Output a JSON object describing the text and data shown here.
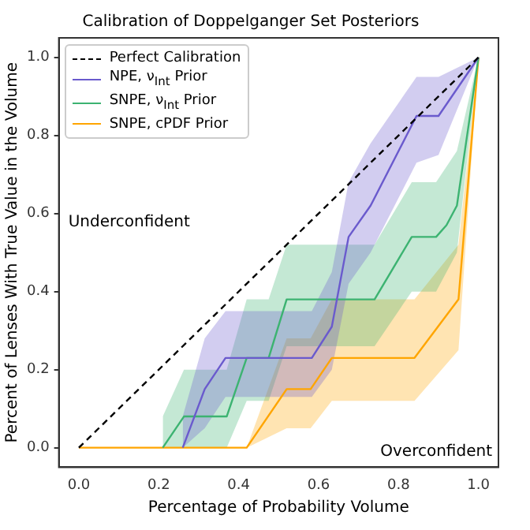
{
  "chart_data": {
    "type": "line",
    "title": "Calibration of Doppelganger Set Posteriors",
    "xlabel": "Percentage of Probability Volume",
    "ylabel": "Percent of Lenses With True Value in the Volume",
    "xlim": [
      -0.05,
      1.05
    ],
    "ylim": [
      -0.05,
      1.05
    ],
    "xticks": [
      {
        "value": 0,
        "label": "0.0"
      },
      0.2,
      0.4,
      0.6,
      0.8,
      {
        "value": 1,
        "label": "1.0"
      }
    ],
    "yticks": [
      {
        "value": 0,
        "label": "0.0"
      },
      0.2,
      0.4,
      0.6,
      0.8,
      {
        "value": 1,
        "label": "1.0"
      }
    ],
    "grid": false,
    "legend": "top left",
    "marker": "none",
    "annotations": [
      "Underconfident",
      "Overconfident"
    ],
    "series": [
      {
        "name": "Perfect Calibration",
        "color": "#000000",
        "line_style": "dashed",
        "x": [
          0,
          1
        ],
        "values": [
          0,
          1
        ]
      },
      {
        "name": "NPE, ν$_{Int}$ Prior",
        "color": "#6a5acd",
        "x": [
          0.26,
          0.315,
          0.367,
          0.583,
          0.633,
          0.675,
          0.73,
          0.845,
          0.9,
          1
        ],
        "values": [
          0,
          0.15,
          0.23,
          0.23,
          0.31,
          0.54,
          0.62,
          0.85,
          0.85,
          1
        ],
        "lower": [
          0,
          0.05,
          0.13,
          0.13,
          0.2,
          0.42,
          0.5,
          0.73,
          0.75,
          1
        ],
        "upper": [
          0.08,
          0.28,
          0.35,
          0.35,
          0.45,
          0.68,
          0.78,
          0.95,
          0.95,
          1
        ]
      },
      {
        "name": "SNPE, ν$_{Int}$ Prior",
        "color": "#3cb371",
        "x": [
          0.21,
          0.263,
          0.37,
          0.42,
          0.475,
          0.52,
          0.74,
          0.833,
          0.894,
          0.92,
          0.946,
          1
        ],
        "values": [
          0,
          0.08,
          0.08,
          0.23,
          0.23,
          0.38,
          0.38,
          0.54,
          0.54,
          0.57,
          0.62,
          1
        ],
        "lower": [
          0,
          0,
          0,
          0.12,
          0.12,
          0.26,
          0.26,
          0.4,
          0.4,
          0.45,
          0.5,
          1
        ],
        "upper": [
          0.08,
          0.2,
          0.2,
          0.38,
          0.38,
          0.52,
          0.52,
          0.68,
          0.68,
          0.72,
          0.76,
          1
        ]
      },
      {
        "name": "SNPE, cPDF Prior",
        "color": "#ffa500",
        "x": [
          0,
          0.42,
          0.52,
          0.58,
          0.633,
          0.84,
          0.95,
          1
        ],
        "values": [
          0,
          0,
          0.15,
          0.15,
          0.23,
          0.23,
          0.38,
          1
        ],
        "lower": [
          0,
          0,
          0.05,
          0.05,
          0.12,
          0.12,
          0.25,
          1
        ],
        "upper": [
          0,
          0,
          0.28,
          0.28,
          0.38,
          0.38,
          0.52,
          1
        ]
      }
    ]
  }
}
